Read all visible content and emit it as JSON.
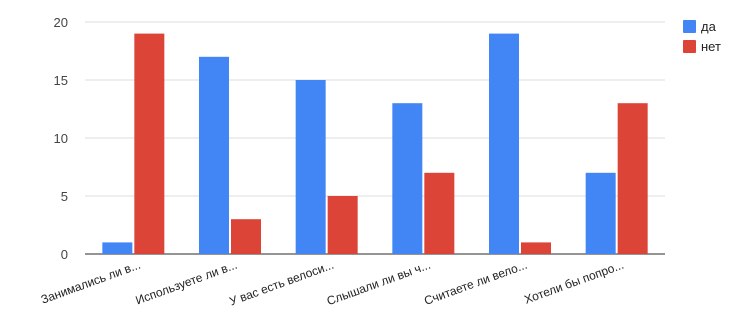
{
  "chart_data": {
    "type": "bar",
    "title": "",
    "xlabel": "",
    "ylabel": "",
    "ylim": [
      0,
      20
    ],
    "yticks": [
      0,
      5,
      10,
      15,
      20
    ],
    "grid": true,
    "legend_position": "top-right",
    "categories": [
      "Занимались ли в...",
      "Используете ли в...",
      "У вас есть велоси...",
      "Слышали ли вы ч...",
      "Считаете ли вело...",
      "Хотели бы попро..."
    ],
    "series": [
      {
        "name": "да",
        "color": "#4285f4",
        "values": [
          1,
          17,
          15,
          13,
          19,
          7
        ]
      },
      {
        "name": "нет",
        "color": "#db4437",
        "values": [
          19,
          3,
          5,
          7,
          1,
          13
        ]
      }
    ]
  }
}
